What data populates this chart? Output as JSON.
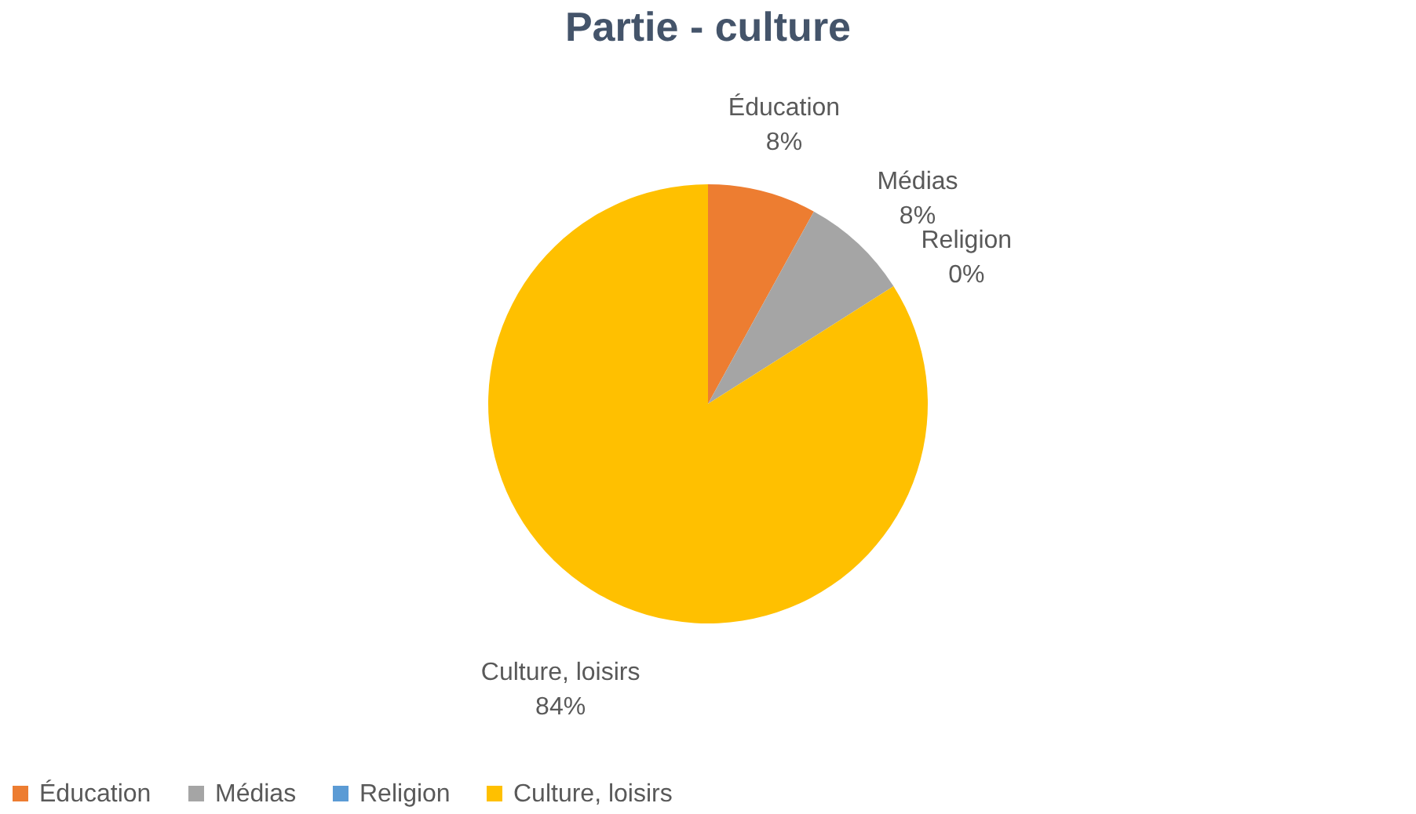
{
  "chart_data": {
    "type": "pie",
    "title": "Partie - culture",
    "categories": [
      "Éducation",
      "Médias",
      "Religion",
      "Culture, loisirs"
    ],
    "values": [
      8,
      8,
      0,
      84
    ],
    "colors": [
      "#ed7d31",
      "#a5a5a5",
      "#5b9bd5",
      "#ffc000"
    ],
    "value_labels": [
      "8%",
      "8%",
      "0%",
      "84%"
    ],
    "legend": "bottom"
  }
}
